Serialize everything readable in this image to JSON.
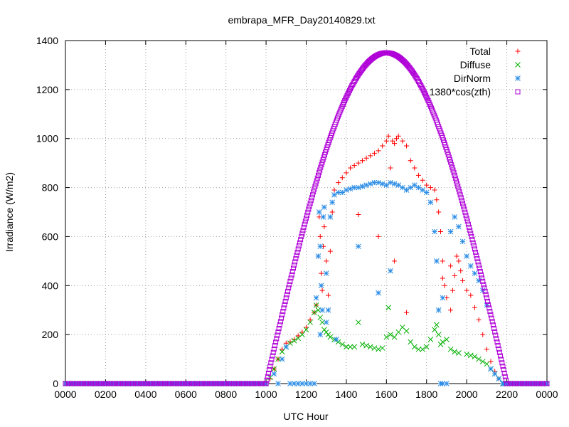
{
  "chart_data": {
    "type": "scatter",
    "title": "embrapa_MFR_Day20140829.txt",
    "xlabel": "UTC Hour",
    "ylabel": "Irradiance (W/m2)",
    "xlim": [
      0,
      2400
    ],
    "ylim": [
      0,
      1400
    ],
    "x_tick_labels": [
      "0000",
      "0200",
      "0400",
      "0600",
      "0800",
      "1000",
      "1200",
      "1400",
      "1600",
      "1800",
      "2000",
      "2200",
      "0000"
    ],
    "y_ticks": [
      0,
      200,
      400,
      600,
      800,
      1000,
      1200,
      1400
    ],
    "grid": true,
    "legend_position": "top-right",
    "series": [
      {
        "name": "Total",
        "marker": "+",
        "color": "#ff0000",
        "points": [
          [
            1000,
            0
          ],
          [
            1020,
            20
          ],
          [
            1040,
            60
          ],
          [
            1060,
            100
          ],
          [
            1080,
            140
          ],
          [
            1100,
            165
          ],
          [
            1120,
            170
          ],
          [
            1140,
            180
          ],
          [
            1160,
            195
          ],
          [
            1180,
            210
          ],
          [
            1200,
            230
          ],
          [
            1220,
            260
          ],
          [
            1240,
            290
          ],
          [
            1250,
            320
          ],
          [
            1260,
            520
          ],
          [
            1265,
            680
          ],
          [
            1270,
            600
          ],
          [
            1275,
            450
          ],
          [
            1280,
            380
          ],
          [
            1285,
            560
          ],
          [
            1290,
            640
          ],
          [
            1300,
            500
          ],
          [
            1310,
            360
          ],
          [
            1320,
            540
          ],
          [
            1330,
            700
          ],
          [
            1340,
            790
          ],
          [
            1360,
            820
          ],
          [
            1380,
            840
          ],
          [
            1400,
            860
          ],
          [
            1420,
            880
          ],
          [
            1440,
            890
          ],
          [
            1460,
            900
          ],
          [
            1480,
            910
          ],
          [
            1500,
            920
          ],
          [
            1520,
            930
          ],
          [
            1540,
            940
          ],
          [
            1560,
            950
          ],
          [
            1580,
            970
          ],
          [
            1600,
            990
          ],
          [
            1610,
            1010
          ],
          [
            1620,
            880
          ],
          [
            1630,
            990
          ],
          [
            1640,
            980
          ],
          [
            1650,
            1000
          ],
          [
            1660,
            1010
          ],
          [
            1680,
            990
          ],
          [
            1700,
            970
          ],
          [
            1720,
            910
          ],
          [
            1740,
            880
          ],
          [
            1760,
            850
          ],
          [
            1780,
            830
          ],
          [
            1800,
            810
          ],
          [
            1820,
            800
          ],
          [
            1840,
            790
          ],
          [
            1850,
            750
          ],
          [
            1860,
            700
          ],
          [
            1870,
            620
          ],
          [
            1880,
            500
          ],
          [
            1890,
            400
          ],
          [
            1900,
            350
          ],
          [
            1920,
            300
          ],
          [
            1930,
            380
          ],
          [
            1940,
            440
          ],
          [
            1950,
            520
          ],
          [
            1960,
            500
          ],
          [
            1970,
            460
          ],
          [
            1980,
            420
          ],
          [
            2000,
            380
          ],
          [
            2020,
            360
          ],
          [
            2040,
            310
          ],
          [
            2060,
            260
          ],
          [
            2080,
            200
          ],
          [
            2100,
            140
          ],
          [
            2120,
            90
          ],
          [
            2140,
            50
          ],
          [
            2160,
            20
          ],
          [
            2180,
            0
          ],
          [
            1460,
            690
          ],
          [
            1560,
            600
          ],
          [
            1700,
            290
          ],
          [
            1640,
            500
          ],
          [
            1880,
            430
          ],
          [
            1920,
            480
          ]
        ]
      },
      {
        "name": "Diffuse",
        "marker": "x",
        "color": "#00b000",
        "points": [
          [
            1000,
            0
          ],
          [
            1020,
            25
          ],
          [
            1040,
            60
          ],
          [
            1060,
            100
          ],
          [
            1080,
            130
          ],
          [
            1100,
            150
          ],
          [
            1120,
            165
          ],
          [
            1140,
            175
          ],
          [
            1160,
            185
          ],
          [
            1180,
            200
          ],
          [
            1200,
            220
          ],
          [
            1220,
            250
          ],
          [
            1240,
            290
          ],
          [
            1250,
            320
          ],
          [
            1260,
            300
          ],
          [
            1270,
            270
          ],
          [
            1280,
            250
          ],
          [
            1290,
            220
          ],
          [
            1300,
            210
          ],
          [
            1310,
            200
          ],
          [
            1320,
            190
          ],
          [
            1340,
            180
          ],
          [
            1360,
            170
          ],
          [
            1380,
            160
          ],
          [
            1400,
            150
          ],
          [
            1420,
            150
          ],
          [
            1440,
            150
          ],
          [
            1460,
            250
          ],
          [
            1480,
            160
          ],
          [
            1500,
            155
          ],
          [
            1520,
            150
          ],
          [
            1540,
            145
          ],
          [
            1560,
            140
          ],
          [
            1580,
            145
          ],
          [
            1600,
            190
          ],
          [
            1610,
            310
          ],
          [
            1620,
            200
          ],
          [
            1640,
            190
          ],
          [
            1660,
            210
          ],
          [
            1680,
            230
          ],
          [
            1700,
            215
          ],
          [
            1720,
            170
          ],
          [
            1740,
            150
          ],
          [
            1760,
            140
          ],
          [
            1780,
            140
          ],
          [
            1800,
            150
          ],
          [
            1820,
            180
          ],
          [
            1840,
            220
          ],
          [
            1850,
            240
          ],
          [
            1860,
            200
          ],
          [
            1870,
            160
          ],
          [
            1880,
            170
          ],
          [
            1900,
            180
          ],
          [
            1920,
            140
          ],
          [
            1940,
            130
          ],
          [
            1960,
            125
          ],
          [
            2000,
            120
          ],
          [
            2020,
            115
          ],
          [
            2040,
            110
          ],
          [
            2060,
            100
          ],
          [
            2080,
            90
          ],
          [
            2100,
            80
          ],
          [
            2120,
            60
          ],
          [
            2140,
            40
          ],
          [
            2160,
            20
          ],
          [
            2180,
            0
          ]
        ]
      },
      {
        "name": "DirNorm",
        "marker": "*",
        "color": "#2a8ce6",
        "points": [
          [
            1000,
            0
          ],
          [
            1040,
            40
          ],
          [
            1060,
            0
          ],
          [
            1080,
            100
          ],
          [
            1100,
            150
          ],
          [
            1120,
            0
          ],
          [
            1140,
            0
          ],
          [
            1160,
            0
          ],
          [
            1180,
            0
          ],
          [
            1200,
            0
          ],
          [
            1220,
            0
          ],
          [
            1240,
            0
          ],
          [
            1250,
            350
          ],
          [
            1260,
            520
          ],
          [
            1265,
            700
          ],
          [
            1270,
            560
          ],
          [
            1275,
            400
          ],
          [
            1280,
            300
          ],
          [
            1285,
            680
          ],
          [
            1290,
            720
          ],
          [
            1300,
            450
          ],
          [
            1310,
            300
          ],
          [
            1320,
            680
          ],
          [
            1330,
            740
          ],
          [
            1340,
            770
          ],
          [
            1360,
            780
          ],
          [
            1380,
            780
          ],
          [
            1400,
            790
          ],
          [
            1420,
            795
          ],
          [
            1440,
            800
          ],
          [
            1460,
            800
          ],
          [
            1480,
            805
          ],
          [
            1500,
            810
          ],
          [
            1520,
            815
          ],
          [
            1540,
            820
          ],
          [
            1560,
            820
          ],
          [
            1580,
            815
          ],
          [
            1600,
            810
          ],
          [
            1620,
            820
          ],
          [
            1640,
            815
          ],
          [
            1660,
            810
          ],
          [
            1680,
            800
          ],
          [
            1700,
            790
          ],
          [
            1720,
            800
          ],
          [
            1740,
            810
          ],
          [
            1760,
            800
          ],
          [
            1780,
            790
          ],
          [
            1800,
            780
          ],
          [
            1820,
            740
          ],
          [
            1840,
            620
          ],
          [
            1850,
            500
          ],
          [
            1860,
            300
          ],
          [
            1870,
            0
          ],
          [
            1880,
            0
          ],
          [
            1900,
            0
          ],
          [
            1920,
            620
          ],
          [
            1940,
            680
          ],
          [
            1960,
            640
          ],
          [
            1980,
            580
          ],
          [
            2000,
            520
          ],
          [
            2020,
            480
          ],
          [
            2040,
            450
          ],
          [
            2060,
            420
          ],
          [
            2080,
            380
          ],
          [
            2100,
            320
          ],
          [
            2120,
            60
          ],
          [
            2140,
            40
          ],
          [
            2160,
            20
          ],
          [
            2180,
            0
          ],
          [
            1460,
            560
          ],
          [
            1560,
            370
          ],
          [
            1620,
            460
          ],
          [
            1300,
            250
          ],
          [
            1350,
            180
          ],
          [
            1270,
            200
          ],
          [
            1880,
            350
          ]
        ]
      },
      {
        "name": "1380*cos(zth)",
        "marker": "square",
        "color": "#b000d8",
        "curve": {
          "start": 1000,
          "end": 2200,
          "peak_x": 1600,
          "peak_y": 1350,
          "baseline": 0
        }
      }
    ]
  }
}
